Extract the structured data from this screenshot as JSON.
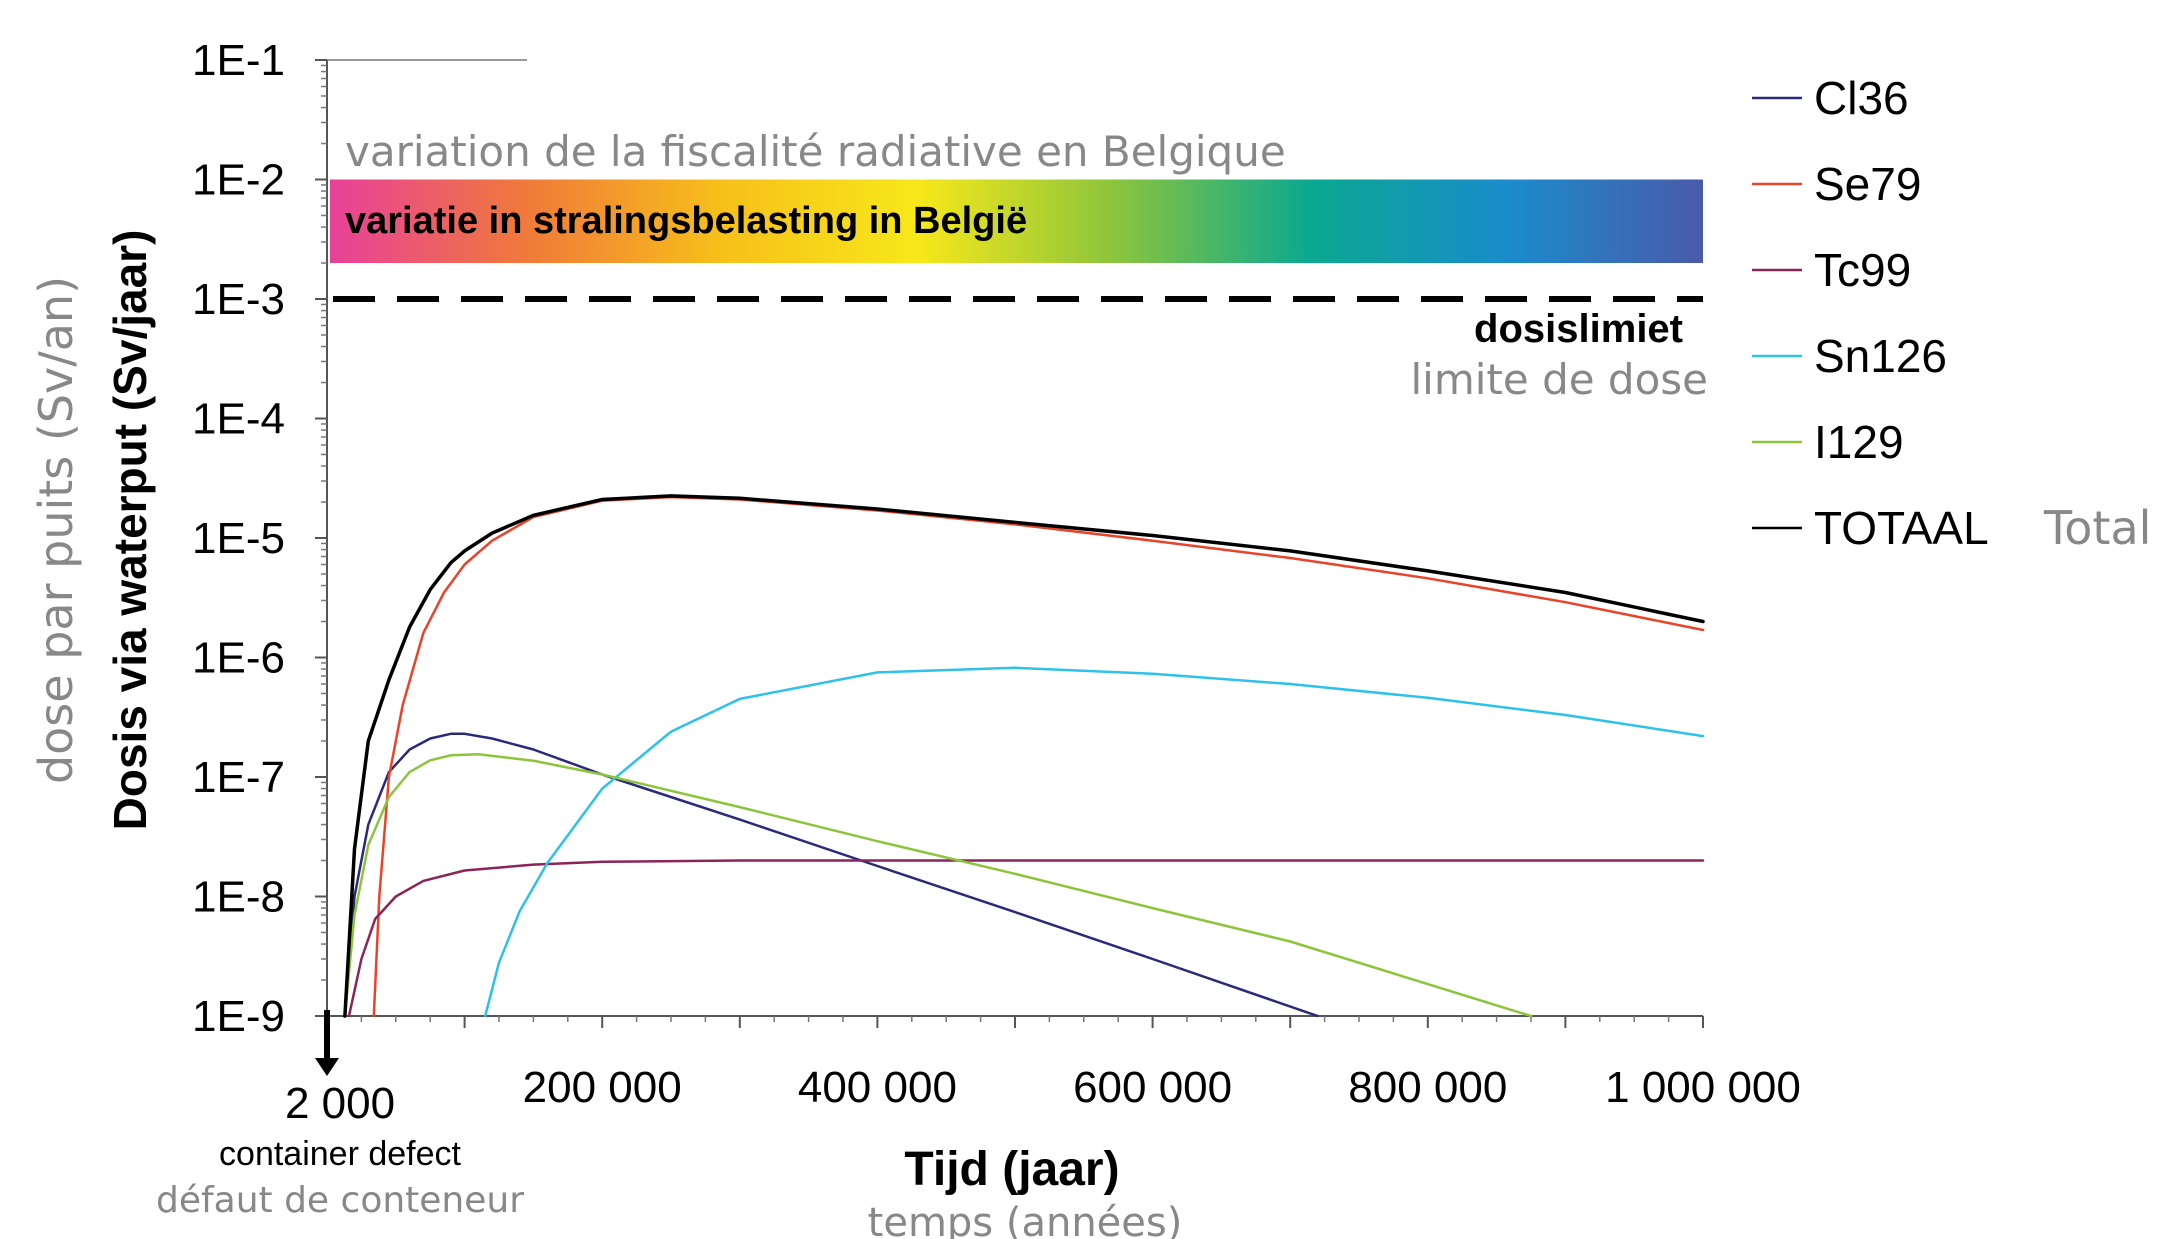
{
  "chart_data": {
    "type": "line",
    "x_scale": "linear",
    "y_scale": "log",
    "xlim": [
      0,
      1000000
    ],
    "ylim": [
      1e-09,
      0.1
    ],
    "y_ticks": [
      {
        "value": 0.1,
        "label": "1E-1"
      },
      {
        "value": 0.01,
        "label": "1E-2"
      },
      {
        "value": 0.001,
        "label": "1E-3"
      },
      {
        "value": 0.0001,
        "label": "1E-4"
      },
      {
        "value": 1e-05,
        "label": "1E-5"
      },
      {
        "value": 1e-06,
        "label": "1E-6"
      },
      {
        "value": 1e-07,
        "label": "1E-7"
      },
      {
        "value": 1e-08,
        "label": "1E-8"
      },
      {
        "value": 1e-09,
        "label": "1E-9"
      }
    ],
    "x_ticks": [
      {
        "value": 2000,
        "label": "2 000"
      },
      {
        "value": 200000,
        "label": "200 000"
      },
      {
        "value": 400000,
        "label": "400 000"
      },
      {
        "value": 600000,
        "label": "600 000"
      },
      {
        "value": 800000,
        "label": "800 000"
      },
      {
        "value": 1000000,
        "label": "1 000 000"
      }
    ],
    "xlabel": "Tijd (jaar)",
    "xlabel_fr": "temps (années)",
    "ylabel": "Dosis via waterput (Sv/jaar)",
    "ylabel_fr": "dose par puits (Sv/an)",
    "grid": false,
    "legend": "right",
    "series": [
      {
        "name": "Cl36",
        "color": "#2a2a7a",
        "x": [
          13000,
          20000,
          30000,
          45000,
          60000,
          75000,
          90000,
          100000,
          120000,
          150000,
          200000,
          300000,
          400000,
          500000,
          600000,
          720000
        ],
        "y": [
          1e-09,
          1e-08,
          4e-08,
          1.1e-07,
          1.7e-07,
          2.1e-07,
          2.3e-07,
          2.3e-07,
          2.1e-07,
          1.7e-07,
          1.05e-07,
          4.4e-08,
          1.8e-08,
          7.4e-09,
          3e-09,
          1e-09
        ]
      },
      {
        "name": "Se79",
        "color": "#e8442a",
        "x": [
          34000,
          38000,
          45000,
          55000,
          70000,
          85000,
          100000,
          120000,
          150000,
          200000,
          250000,
          300000,
          400000,
          500000,
          600000,
          700000,
          800000,
          900000,
          1000000
        ],
        "y": [
          1e-09,
          1e-08,
          1e-07,
          4e-07,
          1.6e-06,
          3.5e-06,
          6e-06,
          9.5e-06,
          1.5e-05,
          2.05e-05,
          2.2e-05,
          2.1e-05,
          1.7e-05,
          1.3e-05,
          9.5e-06,
          6.8e-06,
          4.6e-06,
          2.9e-06,
          1.7e-06
        ]
      },
      {
        "name": "Tc99",
        "color": "#8b2458",
        "x": [
          16000,
          25000,
          35000,
          50000,
          70000,
          100000,
          150000,
          200000,
          300000,
          400000,
          600000,
          800000,
          1000000
        ],
        "y": [
          1e-09,
          3e-09,
          6.5e-09,
          1e-08,
          1.35e-08,
          1.65e-08,
          1.85e-08,
          1.95e-08,
          2e-08,
          2e-08,
          2e-08,
          2e-08,
          2e-08
        ]
      },
      {
        "name": "Sn126",
        "color": "#2ec1ea",
        "x": [
          115000,
          125000,
          140000,
          160000,
          200000,
          250000,
          300000,
          400000,
          500000,
          600000,
          700000,
          800000,
          900000,
          1000000
        ],
        "y": [
          1e-09,
          2.8e-09,
          7.5e-09,
          1.9e-08,
          8e-08,
          2.4e-07,
          4.5e-07,
          7.5e-07,
          8.2e-07,
          7.3e-07,
          6e-07,
          4.6e-07,
          3.3e-07,
          2.2e-07
        ]
      },
      {
        "name": "I129",
        "color": "#8cc43c",
        "x": [
          13000,
          20000,
          30000,
          45000,
          60000,
          75000,
          90000,
          110000,
          150000,
          200000,
          300000,
          400000,
          500000,
          600000,
          700000,
          875000
        ],
        "y": [
          1e-09,
          7e-09,
          2.7e-08,
          6.8e-08,
          1.1e-07,
          1.38e-07,
          1.52e-07,
          1.55e-07,
          1.37e-07,
          1.05e-07,
          5.6e-08,
          2.9e-08,
          1.55e-08,
          8e-09,
          4.2e-09,
          1e-09
        ]
      },
      {
        "name": "TOTAAL",
        "color": "#000000",
        "x": [
          13000,
          20000,
          30000,
          45000,
          60000,
          75000,
          90000,
          100000,
          120000,
          150000,
          200000,
          250000,
          300000,
          400000,
          500000,
          600000,
          700000,
          800000,
          900000,
          1000000
        ],
        "y": [
          1e-09,
          2.5e-08,
          2e-07,
          6.5e-07,
          1.8e-06,
          3.7e-06,
          6.2e-06,
          7.8e-06,
          1.1e-05,
          1.55e-05,
          2.1e-05,
          2.25e-05,
          2.15e-05,
          1.75e-05,
          1.35e-05,
          1.05e-05,
          7.8e-06,
          5.3e-06,
          3.5e-06,
          2e-06
        ]
      }
    ],
    "annotations": {
      "band_fr": "variation de la fiscalité radiative en Belgique",
      "band_nl": "variatie in stralingsbelasting in België",
      "band_range": [
        0.002,
        0.01
      ],
      "band_colors": [
        "#e8409a",
        "#f07a3a",
        "#f7c01a",
        "#f7e81a",
        "#8cc43c",
        "#0aa890",
        "#1a8ccc",
        "#4a5aaa"
      ],
      "limit_value": 0.001,
      "limit_nl": "dosislimiet",
      "limit_fr": "limite de dose",
      "defect_nl": "container defect",
      "defect_fr": "défaut de conteneur",
      "total_fr": "Total"
    }
  }
}
